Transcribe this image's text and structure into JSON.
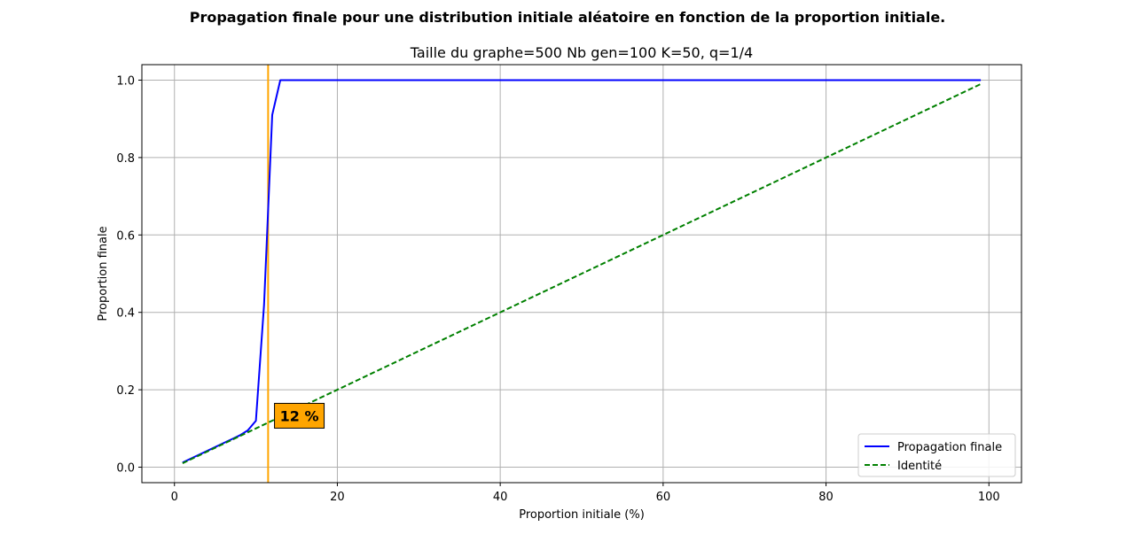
{
  "figure": {
    "suptitle": "Propagation finale pour une distribution initiale aléatoire en fonction de la proportion initiale."
  },
  "chart_data": {
    "type": "line",
    "title": "Taille du graphe=500 Nb gen=100 K=50, q=1/4",
    "xlabel": "Proportion initiale (%)",
    "ylabel": "Proportion finale",
    "xlim": [
      -4,
      104
    ],
    "ylim": [
      -0.04,
      1.04
    ],
    "xticks": [
      "0",
      "20",
      "40",
      "60",
      "80",
      "100"
    ],
    "yticks": [
      "0.0",
      "0.2",
      "0.4",
      "0.6",
      "0.8",
      "1.0"
    ],
    "grid": true,
    "legend_position": "lower-right",
    "series": [
      {
        "name": "Propagation finale",
        "color": "#0000ff",
        "style": "solid",
        "x": [
          1,
          2,
          3,
          4,
          5,
          6,
          7,
          8,
          9,
          10,
          11,
          12,
          13,
          14,
          20,
          30,
          40,
          50,
          60,
          70,
          80,
          90,
          99
        ],
        "y": [
          0.012,
          0.022,
          0.032,
          0.042,
          0.052,
          0.062,
          0.072,
          0.082,
          0.095,
          0.12,
          0.42,
          0.91,
          1.0,
          1.0,
          1.0,
          1.0,
          1.0,
          1.0,
          1.0,
          1.0,
          1.0,
          1.0,
          1.0
        ]
      },
      {
        "name": "Identité",
        "color": "#008000",
        "style": "dashed",
        "x": [
          1,
          99
        ],
        "y": [
          0.01,
          0.99
        ]
      }
    ],
    "vline": {
      "x": 11.5,
      "color": "#ffa500"
    },
    "annotation": {
      "text": "12 %",
      "x": 12.5,
      "y": 0.11,
      "background": "#ffa500",
      "text_color": "#ffffff"
    }
  }
}
